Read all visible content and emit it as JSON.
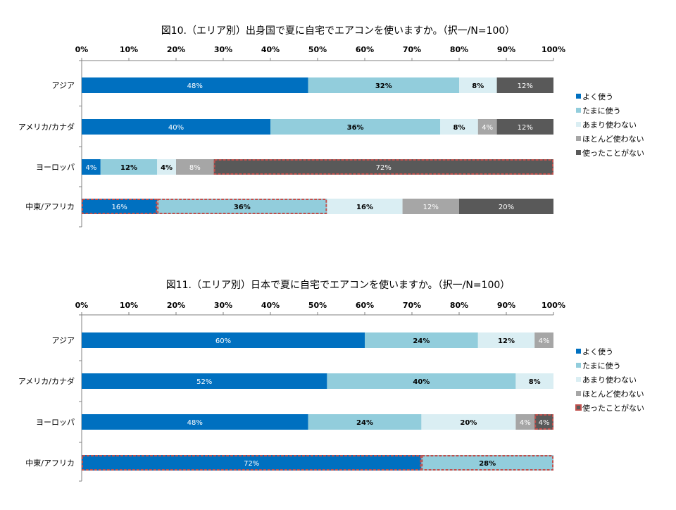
{
  "colors": {
    "often": "#0070c0",
    "sometimes": "#92cddc",
    "rarely": "#daeef3",
    "hardly": "#a6a6a6",
    "never": "#595959",
    "highlight": "#c0504d"
  },
  "chart_data": [
    {
      "type": "bar",
      "orientation": "horizontal",
      "stacked": true,
      "title": "図10.（エリア別）出身国で夏に自宅でエアコンを使いますか。（択一/N=100）",
      "ticks": [
        "0%",
        "10%",
        "20%",
        "30%",
        "40%",
        "50%",
        "60%",
        "70%",
        "80%",
        "90%",
        "100%"
      ],
      "xlim": [
        0,
        100
      ],
      "categories": [
        "アジア",
        "アメリカ/カナダ",
        "ヨーロッパ",
        "中東/アフリカ"
      ],
      "legend": [
        "よく使う",
        "たまに使う",
        "あまり使わない",
        "ほとんど使わない",
        "使ったことがない"
      ],
      "legend_position": "right",
      "series": [
        {
          "name": "よく使う",
          "color_key": "often",
          "values": [
            48,
            40,
            4,
            16
          ],
          "labels": [
            "48%",
            "40%",
            "4%",
            "16%"
          ]
        },
        {
          "name": "たまに使う",
          "color_key": "sometimes",
          "values": [
            32,
            36,
            12,
            36
          ],
          "labels": [
            "32%",
            "36%",
            "12%",
            "36%"
          ]
        },
        {
          "name": "あまり使わない",
          "color_key": "rarely",
          "values": [
            8,
            8,
            4,
            16
          ],
          "labels": [
            "8%",
            "8%",
            "4%",
            "16%"
          ]
        },
        {
          "name": "ほとんど使わない",
          "color_key": "hardly",
          "values": [
            0,
            4,
            8,
            12
          ],
          "labels": [
            "",
            "4%",
            "8%",
            "12%"
          ]
        },
        {
          "name": "使ったことがない",
          "color_key": "never",
          "values": [
            12,
            12,
            72,
            20
          ],
          "labels": [
            "12%",
            "12%",
            "72%",
            "20%"
          ]
        }
      ],
      "highlights": [
        {
          "category": "ヨーロッパ",
          "series": "使ったことがない"
        },
        {
          "category": "中東/アフリカ",
          "series": "よく使う"
        },
        {
          "category": "中東/アフリカ",
          "series": "たまに使う"
        }
      ]
    },
    {
      "type": "bar",
      "orientation": "horizontal",
      "stacked": true,
      "title": "図11.（エリア別）日本で夏に自宅でエアコンを使いますか。（択一/N=100）",
      "ticks": [
        "0%",
        "10%",
        "20%",
        "30%",
        "40%",
        "50%",
        "60%",
        "70%",
        "80%",
        "90%",
        "100%"
      ],
      "xlim": [
        0,
        100
      ],
      "categories": [
        "アジア",
        "アメリカ/カナダ",
        "ヨーロッパ",
        "中東/アフリカ"
      ],
      "legend": [
        "よく使う",
        "たまに使う",
        "あまり使わない",
        "ほとんど使わない",
        "使ったことがない"
      ],
      "legend_position": "right",
      "series": [
        {
          "name": "よく使う",
          "color_key": "often",
          "values": [
            60,
            52,
            48,
            72
          ],
          "labels": [
            "60%",
            "52%",
            "48%",
            "72%"
          ]
        },
        {
          "name": "たまに使う",
          "color_key": "sometimes",
          "values": [
            24,
            40,
            24,
            28
          ],
          "labels": [
            "24%",
            "40%",
            "24%",
            "28%"
          ]
        },
        {
          "name": "あまり使わない",
          "color_key": "rarely",
          "values": [
            12,
            8,
            20,
            0
          ],
          "labels": [
            "12%",
            "8%",
            "20%",
            ""
          ]
        },
        {
          "name": "ほとんど使わない",
          "color_key": "hardly",
          "values": [
            4,
            0,
            4,
            0
          ],
          "labels": [
            "4%",
            "",
            "4%",
            ""
          ]
        },
        {
          "name": "使ったことがない",
          "color_key": "never",
          "values": [
            0,
            0,
            4,
            0
          ],
          "labels": [
            "",
            "",
            "4%",
            ""
          ]
        }
      ],
      "highlights": [
        {
          "category": "ヨーロッパ",
          "series": "使ったことがない"
        },
        {
          "category": "中東/アフリカ",
          "series": "よく使う"
        },
        {
          "category": "中東/アフリカ",
          "series": "たまに使う"
        }
      ],
      "legend_highlight": "使ったことがない"
    }
  ]
}
